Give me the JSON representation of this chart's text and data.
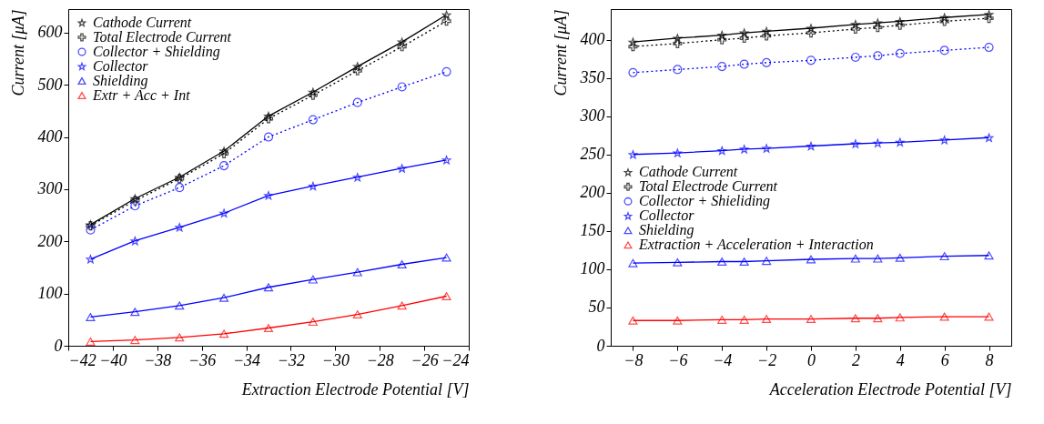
{
  "chart_data": [
    {
      "type": "line",
      "xlabel": "Extraction Electrode Potential [V]",
      "ylabel": "Current [μA]",
      "x": [
        -41,
        -39,
        -37,
        -35,
        -33,
        -31,
        -29,
        -27,
        -25
      ],
      "xlim": [
        -42,
        -24
      ],
      "xticks": [
        -42,
        -40,
        -38,
        -36,
        -34,
        -32,
        -30,
        -28,
        -26,
        -24
      ],
      "ylim": [
        0,
        645
      ],
      "yticks": [
        0,
        100,
        200,
        300,
        400,
        500,
        600
      ],
      "grid": false,
      "legend": "top left",
      "series": [
        {
          "name": "Cathode Current",
          "color": "#000000",
          "marker": "star",
          "line_style": "solid",
          "values": [
            232,
            282,
            323,
            373,
            440,
            486,
            535,
            582,
            634
          ]
        },
        {
          "name": "Total Electrode Current",
          "color": "#000000",
          "marker": "cross",
          "line_style": "dotted",
          "values": [
            230,
            278,
            320,
            368,
            435,
            480,
            527,
            573,
            622
          ]
        },
        {
          "name": "Collector + Shielding",
          "color": "#0000ff",
          "marker": "circle",
          "line_style": "dotted",
          "values": [
            222,
            268,
            303,
            345,
            400,
            433,
            466,
            496,
            525
          ]
        },
        {
          "name": "Collector",
          "color": "#0000ff",
          "marker": "star",
          "line_style": "solid",
          "values": [
            166,
            201,
            227,
            254,
            288,
            306,
            323,
            340,
            356
          ]
        },
        {
          "name": "Shielding",
          "color": "#0000ff",
          "marker": "triangle",
          "line_style": "solid",
          "values": [
            55,
            65,
            77,
            92,
            112,
            127,
            141,
            156,
            169
          ]
        },
        {
          "name": "Extr + Acc + Int",
          "color": "#ff0000",
          "marker": "triangle",
          "line_style": "solid",
          "values": [
            8,
            11,
            16,
            23,
            34,
            46,
            60,
            77,
            95
          ]
        }
      ]
    },
    {
      "type": "line",
      "xlabel": "Acceleration Electrode Potential [V]",
      "ylabel": "Current [μA]",
      "x": [
        -8,
        -6,
        -4,
        -3,
        -2,
        0,
        2,
        3,
        4,
        6,
        8
      ],
      "xlim": [
        -9,
        9
      ],
      "xticks": [
        -8,
        -6,
        -4,
        -2,
        0,
        2,
        4,
        6,
        8
      ],
      "ylim": [
        0,
        440
      ],
      "yticks": [
        0,
        50,
        100,
        150,
        200,
        250,
        300,
        350,
        400
      ],
      "grid": false,
      "legend": "left",
      "series": [
        {
          "name": "Cathode Current",
          "color": "#000000",
          "marker": "star",
          "line_style": "solid",
          "values": [
            397,
            402,
            406,
            409,
            411,
            415,
            420,
            422,
            424,
            429,
            433
          ]
        },
        {
          "name": "Total Electrode Current",
          "color": "#000000",
          "marker": "cross",
          "line_style": "dotted",
          "values": [
            391,
            395,
            400,
            402,
            405,
            409,
            414,
            416,
            419,
            424,
            428
          ]
        },
        {
          "name": "Collector + Shieliding",
          "color": "#0000ff",
          "marker": "circle",
          "line_style": "dotted",
          "values": [
            357,
            361,
            365,
            368,
            370,
            373,
            377,
            379,
            382,
            386,
            390
          ]
        },
        {
          "name": "Collector",
          "color": "#0000ff",
          "marker": "star",
          "line_style": "solid",
          "values": [
            250,
            252,
            255,
            257,
            258,
            261,
            264,
            265,
            266,
            269,
            272
          ]
        },
        {
          "name": "Shielding",
          "color": "#0000ff",
          "marker": "triangle",
          "line_style": "solid",
          "values": [
            108,
            109,
            110,
            110,
            111,
            113,
            114,
            114,
            115,
            117,
            118
          ]
        },
        {
          "name": "Extraction + Acceleration + Interaction",
          "color": "#ff0000",
          "marker": "triangle",
          "line_style": "solid",
          "values": [
            33,
            33,
            34,
            34,
            35,
            35,
            36,
            36,
            37,
            38,
            38
          ]
        }
      ]
    }
  ]
}
